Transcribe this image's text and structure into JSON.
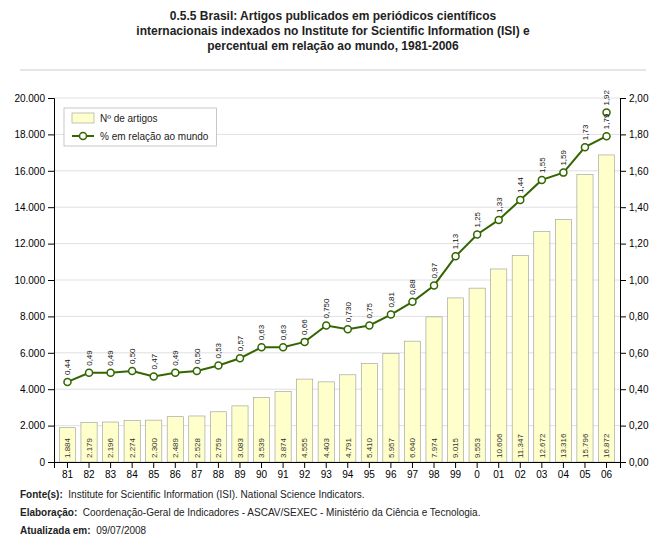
{
  "chart_data": {
    "type": "bar",
    "title": "0.5.5 Brasil: Artigos publicados em periódicos científicos\ninternacionais indexados no Institute for Scientific Information (ISI) e\npercentual em relação ao mundo, 1981-2006",
    "categories": [
      "81",
      "82",
      "83",
      "84",
      "85",
      "86",
      "87",
      "88",
      "89",
      "90",
      "91",
      "92",
      "93",
      "94",
      "95",
      "96",
      "97",
      "98",
      "99",
      "0",
      "01",
      "02",
      "03",
      "04",
      "05",
      "06"
    ],
    "series": [
      {
        "name": "Nº de artigos",
        "type": "bar",
        "color": "#ffffcc",
        "values": [
          1884,
          2179,
          2196,
          2274,
          2300,
          2489,
          2528,
          2759,
          3083,
          3539,
          3874,
          4555,
          4403,
          4791,
          5410,
          5957,
          6640,
          7974,
          9015,
          9553,
          10606,
          11347,
          12672,
          13316,
          15796,
          16872
        ],
        "value_labels": [
          "1.884",
          "2.179",
          "2.196",
          "2.274",
          "2.300",
          "2.489",
          "2.528",
          "2.759",
          "3.083",
          "3.539",
          "3.874",
          "4.555",
          "4.403",
          "4.791",
          "5.410",
          "5.957",
          "6.640",
          "7.974",
          "9.015",
          "9.553",
          "10.606",
          "11.347",
          "12.672",
          "13.316",
          "15.796",
          "16.872"
        ]
      },
      {
        "name": "% em relação ao mundo",
        "type": "line",
        "axis": "y2",
        "color": "#336600",
        "marker": "circle",
        "values": [
          0.44,
          0.49,
          0.49,
          0.5,
          0.47,
          0.49,
          0.5,
          0.53,
          0.57,
          0.63,
          0.63,
          0.66,
          0.75,
          0.73,
          0.75,
          0.81,
          0.88,
          0.97,
          1.13,
          1.25,
          1.33,
          1.44,
          1.55,
          1.59,
          1.73,
          1.79
        ],
        "value_labels": [
          "0,44",
          "0,49",
          "0,49",
          "0,50",
          "0,47",
          "0,49",
          "0,50",
          "0,53",
          "0,57",
          "0,63",
          "0,63",
          "0,66",
          "0,750",
          "0,730",
          "0,75",
          "0,81",
          "0,88",
          "0,97",
          "1,13",
          "1,25",
          "1,33",
          "1,44",
          "1,55",
          "1,59",
          "1,73",
          "1,79"
        ]
      }
    ],
    "annotations": [
      {
        "text": "1,92",
        "x": "06",
        "y": 1.92,
        "axis": "y2",
        "marker": "circle"
      }
    ],
    "ylim": [
      0,
      20000
    ],
    "yticks": [
      0,
      {
        "value": 2000,
        "label": "2.000"
      },
      {
        "value": 4000,
        "label": "4.000"
      },
      {
        "value": 6000,
        "label": "6.000"
      },
      {
        "value": 8000,
        "label": "8.000"
      },
      {
        "value": 10000,
        "label": "10.000"
      },
      {
        "value": 12000,
        "label": "12.000"
      },
      {
        "value": 14000,
        "label": "14.000"
      },
      {
        "value": 16000,
        "label": "16.000"
      },
      {
        "value": 18000,
        "label": "18.000"
      },
      {
        "value": 20000,
        "label": "20.000"
      }
    ],
    "y2lim": [
      0,
      2.0
    ],
    "y2ticks": [
      {
        "value": 0.0,
        "label": "0,00"
      },
      {
        "value": 0.2,
        "label": "0,20"
      },
      {
        "value": 0.4,
        "label": "0,40"
      },
      {
        "value": 0.6,
        "label": "0,60"
      },
      {
        "value": 0.8,
        "label": "0,80"
      },
      {
        "value": 1.0,
        "label": "1,00"
      },
      {
        "value": 1.2,
        "label": "1,20"
      },
      {
        "value": 1.4,
        "label": "1,40"
      },
      {
        "value": 1.6,
        "label": "1,60"
      },
      {
        "value": 1.8,
        "label": "1,80"
      },
      {
        "value": 2.0,
        "label": "2,00"
      }
    ],
    "grid": true,
    "legend": "upper left",
    "data_labels": true,
    "footer": [
      {
        "label": "Fonte(s):",
        "text": "  Institute for Scientific Information (ISI). National Science Indicators."
      },
      {
        "label": "Elaboração:",
        "text": "  Coordenação-Geral de Indicadores - ASCAV/SEXEC - Ministério da Ciência e Tecnologia."
      },
      {
        "label": "Atualizada em:",
        "text": "  09/07/2008"
      }
    ]
  }
}
